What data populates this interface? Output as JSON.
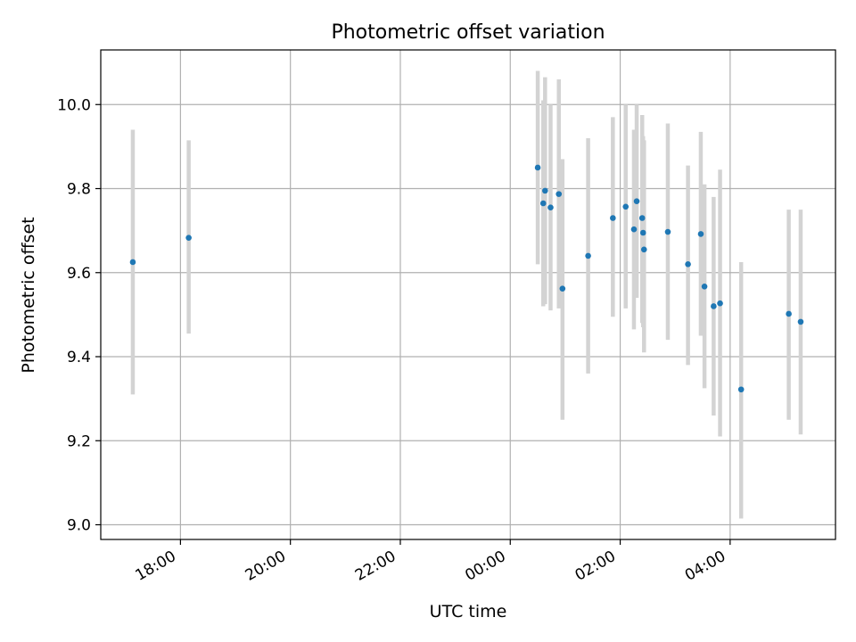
{
  "chart_data": {
    "type": "scatter",
    "title": "Photometric offset variation",
    "xlabel": "UTC time",
    "ylabel": "Photometric offset",
    "x_unit": "UTC time of day (Day 1 evening → Day 2 early morning)",
    "xlim": [
      "16:33",
      "05:55+1"
    ],
    "ylim": [
      8.965,
      10.13
    ],
    "x_ticks": [
      "18:00",
      "20:00",
      "22:00",
      "00:00",
      "02:00",
      "04:00"
    ],
    "y_ticks": [
      "9.0",
      "9.2",
      "9.4",
      "9.6",
      "9.8",
      "10.0"
    ],
    "grid": true,
    "legend": false,
    "colors": {
      "point": "#1f77b4",
      "errorbar": "#d3d3d3",
      "grid": "#b0b0b0"
    },
    "points": [
      {
        "x": "17:08",
        "y": 9.625,
        "err_low": 9.31,
        "err_high": 9.94
      },
      {
        "x": "18:09",
        "y": 9.683,
        "err_low": 9.455,
        "err_high": 9.915
      },
      {
        "x": "00:30",
        "y": 9.85,
        "err_low": 9.62,
        "err_high": 10.08
      },
      {
        "x": "00:36",
        "y": 9.765,
        "err_low": 9.52,
        "err_high": 10.01
      },
      {
        "x": "00:38",
        "y": 9.795,
        "err_low": 9.525,
        "err_high": 10.065
      },
      {
        "x": "00:44",
        "y": 9.755,
        "err_low": 9.51,
        "err_high": 10.0
      },
      {
        "x": "00:53",
        "y": 9.787,
        "err_low": 9.515,
        "err_high": 10.06
      },
      {
        "x": "00:57",
        "y": 9.562,
        "err_low": 9.25,
        "err_high": 9.87
      },
      {
        "x": "01:25",
        "y": 9.64,
        "err_low": 9.36,
        "err_high": 9.92
      },
      {
        "x": "01:52",
        "y": 9.73,
        "err_low": 9.495,
        "err_high": 9.97
      },
      {
        "x": "02:06",
        "y": 9.757,
        "err_low": 9.515,
        "err_high": 10.0
      },
      {
        "x": "02:15",
        "y": 9.703,
        "err_low": 9.465,
        "err_high": 9.94
      },
      {
        "x": "02:18",
        "y": 9.77,
        "err_low": 9.54,
        "err_high": 10.0
      },
      {
        "x": "02:24",
        "y": 9.73,
        "err_low": 9.48,
        "err_high": 9.975
      },
      {
        "x": "02:25",
        "y": 9.695,
        "err_low": 9.47,
        "err_high": 9.925
      },
      {
        "x": "02:26",
        "y": 9.655,
        "err_low": 9.41,
        "err_high": 9.915
      },
      {
        "x": "02:52",
        "y": 9.697,
        "err_low": 9.44,
        "err_high": 9.955
      },
      {
        "x": "03:14",
        "y": 9.62,
        "err_low": 9.38,
        "err_high": 9.855
      },
      {
        "x": "03:28",
        "y": 9.692,
        "err_low": 9.45,
        "err_high": 9.935
      },
      {
        "x": "03:32",
        "y": 9.567,
        "err_low": 9.325,
        "err_high": 9.81
      },
      {
        "x": "03:42",
        "y": 9.52,
        "err_low": 9.26,
        "err_high": 9.78
      },
      {
        "x": "03:49",
        "y": 9.527,
        "err_low": 9.21,
        "err_high": 9.845
      },
      {
        "x": "04:12",
        "y": 9.322,
        "err_low": 9.015,
        "err_high": 9.625
      },
      {
        "x": "05:04",
        "y": 9.502,
        "err_low": 9.25,
        "err_high": 9.75
      },
      {
        "x": "05:17",
        "y": 9.483,
        "err_low": 9.215,
        "err_high": 9.75
      }
    ]
  }
}
